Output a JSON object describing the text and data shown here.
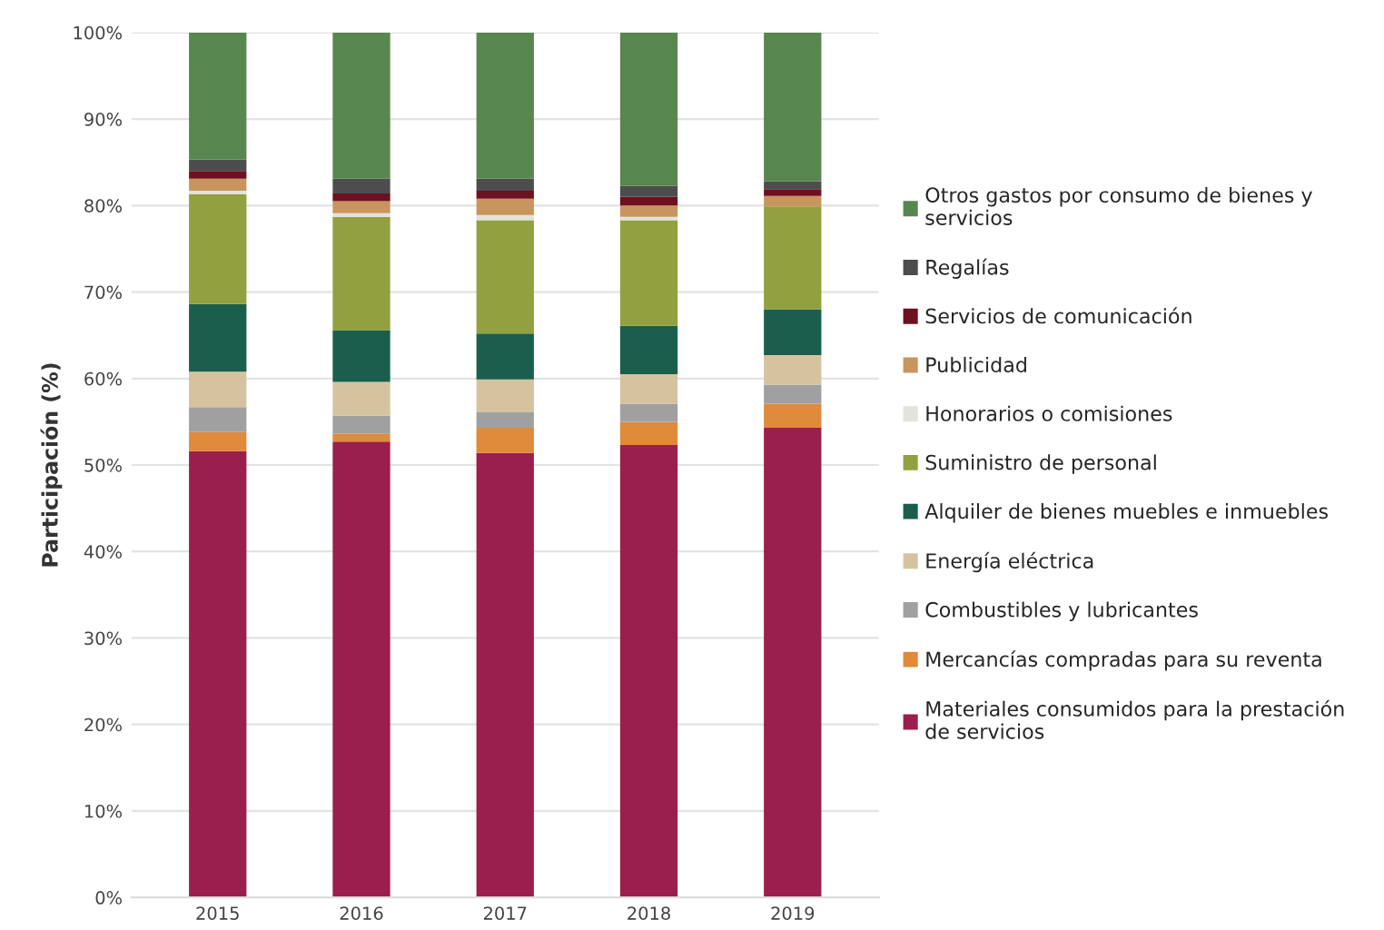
{
  "chart_data": {
    "type": "bar",
    "stacked": true,
    "ylabel": "Participación (%)",
    "categories": [
      "2015",
      "2016",
      "2017",
      "2018",
      "2019"
    ],
    "ylim": [
      0,
      100
    ],
    "yticks": [
      {
        "value": 0,
        "label": "0%"
      },
      {
        "value": 10,
        "label": "10%"
      },
      {
        "value": 20,
        "label": "20%"
      },
      {
        "value": 30,
        "label": "30%"
      },
      {
        "value": 40,
        "label": "40%"
      },
      {
        "value": 50,
        "label": "50%"
      },
      {
        "value": 60,
        "label": "60%"
      },
      {
        "value": 70,
        "label": "70%"
      },
      {
        "value": 80,
        "label": "80%"
      },
      {
        "value": 90,
        "label": "90%"
      },
      {
        "value": 100,
        "label": "100%"
      }
    ],
    "grid": "y",
    "legend": "right",
    "series": [
      {
        "name": "Materiales consumidos para la prestación\nde servicios",
        "color": "#9b1f4c",
        "values": [
          51.6,
          52.7,
          51.4,
          52.3,
          54.3
        ]
      },
      {
        "name": "Mercancías compradas para su reventa",
        "color": "#e08a3c",
        "values": [
          2.2,
          0.9,
          2.9,
          2.7,
          2.8
        ]
      },
      {
        "name": "Combustibles y lubricantes",
        "color": "#a0a0a0",
        "values": [
          2.9,
          2.1,
          1.8,
          2.1,
          2.2
        ]
      },
      {
        "name": "Energía eléctrica",
        "color": "#d5c3a0",
        "values": [
          4.1,
          3.9,
          3.8,
          3.4,
          3.4
        ]
      },
      {
        "name": "Alquiler de bienes muebles e inmuebles",
        "color": "#1c5e4c",
        "values": [
          7.8,
          6.0,
          5.3,
          5.6,
          5.3
        ]
      },
      {
        "name": "Suministro de personal",
        "color": "#93a040",
        "values": [
          12.7,
          13.1,
          13.1,
          12.2,
          11.9
        ]
      },
      {
        "name": "Honorarios o comisiones",
        "color": "#e4e2dc",
        "values": [
          0.4,
          0.4,
          0.6,
          0.4,
          null
        ]
      },
      {
        "name": "Publicidad",
        "color": "#c8955f",
        "values": [
          1.4,
          1.4,
          1.9,
          1.3,
          1.2
        ]
      },
      {
        "name": "Servicios de comunicación",
        "color": "#6e1020",
        "values": [
          0.9,
          0.9,
          0.9,
          1.0,
          0.8
        ]
      },
      {
        "name": "Regalías",
        "color": "#4d4d4d",
        "values": [
          1.3,
          1.7,
          1.4,
          1.3,
          0.9
        ]
      },
      {
        "name": "Otros gastos por consumo de bienes y\nservicios",
        "color": "#58864f",
        "values": [
          14.7,
          16.9,
          16.9,
          17.7,
          17.2
        ]
      }
    ]
  }
}
